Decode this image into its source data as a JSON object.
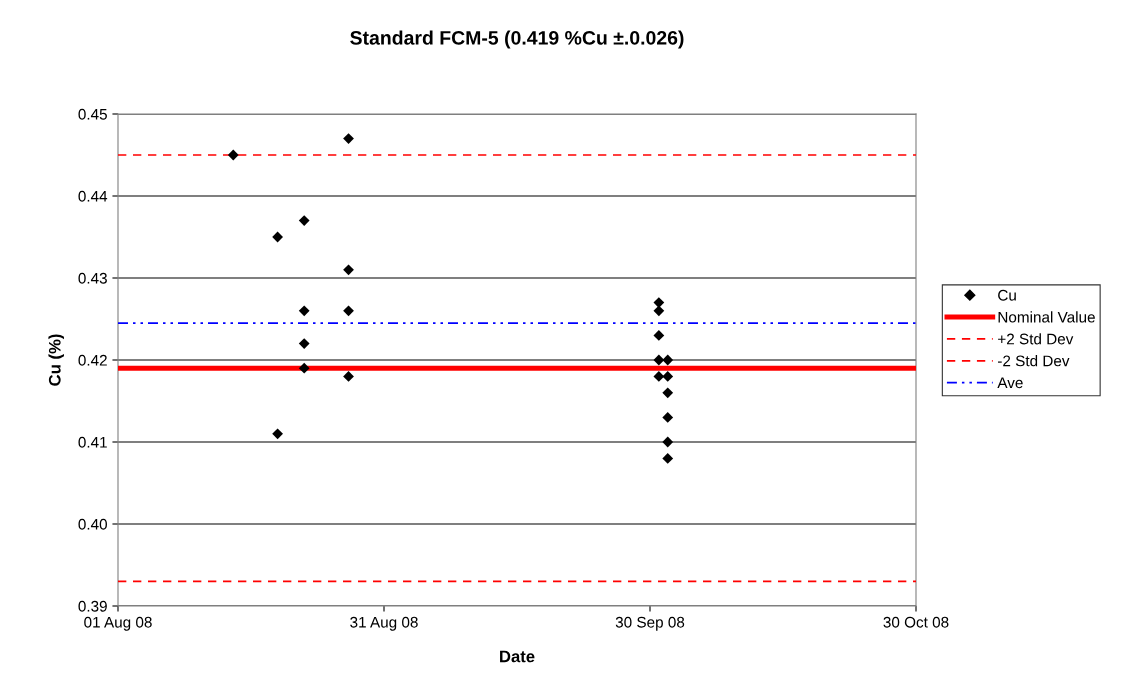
{
  "chart_data": {
    "type": "scatter",
    "title": "Standard FCM-5 (0.419 %Cu ±.0.026)",
    "xlabel": "Date",
    "ylabel": "Cu (%)",
    "xlim": [
      "2008-08-01",
      "2008-10-30"
    ],
    "xticks": [
      {
        "value": "2008-08-01",
        "label": "01 Aug 08"
      },
      {
        "value": "2008-08-31",
        "label": "31 Aug 08"
      },
      {
        "value": "2008-09-30",
        "label": "30 Sep 08"
      },
      {
        "value": "2008-10-30",
        "label": "30 Oct 08"
      }
    ],
    "ylim": [
      0.39,
      0.45
    ],
    "yticks": [
      {
        "value": 0.39,
        "label": "0.39"
      },
      {
        "value": 0.4,
        "label": "0.40"
      },
      {
        "value": 0.41,
        "label": "0.41"
      },
      {
        "value": 0.42,
        "label": "0.42"
      },
      {
        "value": 0.43,
        "label": "0.43"
      },
      {
        "value": 0.44,
        "label": "0.44"
      },
      {
        "value": 0.45,
        "label": "0.45"
      }
    ],
    "grid": "y",
    "legend": "right",
    "series": [
      {
        "name": "Cu",
        "marker": "diamond",
        "color": "#000000",
        "x": [
          "2008-08-14",
          "2008-08-19",
          "2008-08-19",
          "2008-08-22",
          "2008-08-22",
          "2008-08-22",
          "2008-08-22",
          "2008-08-27",
          "2008-08-27",
          "2008-08-27",
          "2008-08-27",
          "2008-10-01",
          "2008-10-01",
          "2008-10-01",
          "2008-10-01",
          "2008-10-01",
          "2008-10-02",
          "2008-10-02",
          "2008-10-02",
          "2008-10-02",
          "2008-10-02",
          "2008-10-02"
        ],
        "values": [
          0.445,
          0.435,
          0.411,
          0.437,
          0.426,
          0.422,
          0.419,
          0.447,
          0.431,
          0.426,
          0.418,
          0.427,
          0.426,
          0.423,
          0.42,
          0.418,
          0.42,
          0.418,
          0.416,
          0.413,
          0.41,
          0.408
        ]
      },
      {
        "name": "Nominal Value",
        "type": "line",
        "line_style": "solid",
        "color": "#ff0000",
        "x": [
          "2008-08-01",
          "2008-10-30"
        ],
        "values": [
          0.419,
          0.419
        ]
      },
      {
        "name": "+2 Std Dev",
        "type": "line",
        "line_style": "dashed",
        "color": "#ff0000",
        "x": [
          "2008-08-01",
          "2008-10-30"
        ],
        "values": [
          0.445,
          0.445
        ]
      },
      {
        "name": "-2 Std Dev",
        "type": "line",
        "line_style": "dashed",
        "color": "#ff0000",
        "x": [
          "2008-08-01",
          "2008-10-30"
        ],
        "values": [
          0.393,
          0.393
        ]
      },
      {
        "name": "Ave",
        "type": "line",
        "line_style": "dashdotdot",
        "color": "#0000ff",
        "x": [
          "2008-08-01",
          "2008-10-30"
        ],
        "values": [
          0.4245,
          0.4245
        ]
      }
    ]
  }
}
